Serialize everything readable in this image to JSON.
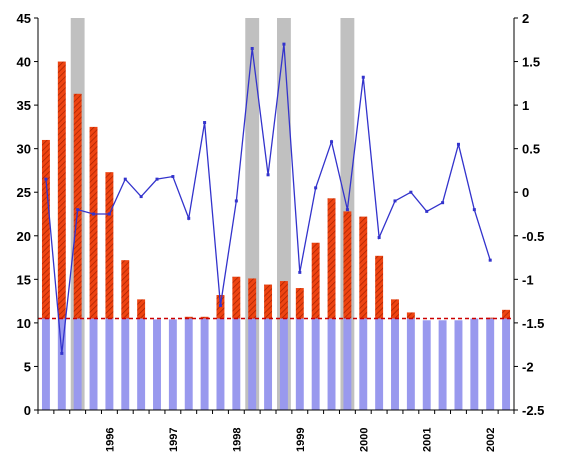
{
  "chart_data": {
    "type": "bar",
    "title": "",
    "xlabel": "",
    "ylabel": "",
    "y_left": {
      "ylim": [
        0,
        45
      ],
      "ticks": [
        0,
        5,
        10,
        15,
        20,
        25,
        30,
        35,
        40,
        45
      ]
    },
    "y_right": {
      "ylim": [
        -2.5,
        2
      ],
      "ticks": [
        -2.5,
        -2,
        -1.5,
        -1,
        -0.5,
        0,
        0.5,
        1,
        1.5,
        2
      ]
    },
    "x_labels": [
      {
        "label": "1996",
        "index": 4
      },
      {
        "label": "1997",
        "index": 8
      },
      {
        "label": "1998",
        "index": 12
      },
      {
        "label": "1999",
        "index": 16
      },
      {
        "label": "2000",
        "index": 20
      },
      {
        "label": "2001",
        "index": 24
      },
      {
        "label": "2002",
        "index": 28
      }
    ],
    "n_periods": 30,
    "shaded_periods": [
      [
        2,
        3
      ],
      [
        13,
        14
      ],
      [
        15,
        16
      ],
      [
        19,
        20
      ]
    ],
    "base_level": 10.5,
    "bars_total": [
      31,
      40,
      36.3,
      32.5,
      27.3,
      17.2,
      12.7,
      10.4,
      10.4,
      10.7,
      10.7,
      13.2,
      15.3,
      15.1,
      14.4,
      14.8,
      14.0,
      19.2,
      24.3,
      22.8,
      22.2,
      17.7,
      12.7,
      11.2,
      10.3,
      10.3,
      10.3,
      10.5,
      10.6,
      11.5
    ],
    "line": [
      0.15,
      -1.85,
      -0.2,
      -0.25,
      -0.25,
      0.15,
      -0.05,
      0.15,
      0.18,
      -0.3,
      0.8,
      -1.3,
      -0.1,
      1.65,
      0.2,
      1.7,
      -0.92,
      0.05,
      0.58,
      -0.2,
      1.32,
      -0.52,
      -0.1,
      0.0,
      -0.22,
      -0.12,
      0.55,
      -0.2,
      -0.78
    ],
    "colors": {
      "bar_base": "#9999ee",
      "bar_top": "#ee4411",
      "bar_hatch": "#aa2200",
      "line": "#3333cc",
      "reference_line": "#cc0000",
      "shading": "#c0c0c0"
    }
  }
}
